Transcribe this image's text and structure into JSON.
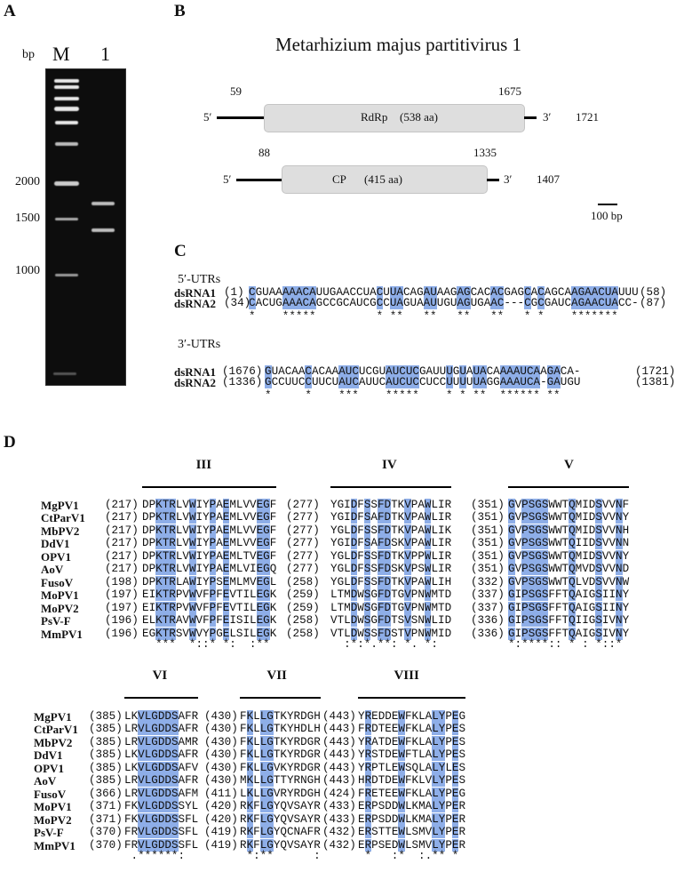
{
  "panels": {
    "a": "A",
    "b": "B",
    "c": "C",
    "d": "D"
  },
  "gel": {
    "unit_label": "bp",
    "lanes": [
      "M",
      "1"
    ],
    "markers": [
      "2000",
      "1500",
      "1000"
    ]
  },
  "genome": {
    "title": "Metarhizium majus partitivirus 1",
    "segments": [
      {
        "five": "5′",
        "three": "3′",
        "start": "59",
        "end": "1675",
        "length": "1721",
        "orf": "RdRp",
        "aa": "(538 aa)"
      },
      {
        "five": "5′",
        "three": "3′",
        "start": "88",
        "end": "1335",
        "length": "1407",
        "orf": "CP",
        "aa": "(415 aa)"
      }
    ],
    "scale_label": "100 bp"
  },
  "utr": {
    "five_title": "5′-UTRs",
    "three_title": "3′-UTRs",
    "five": {
      "rows": [
        {
          "name": "dsRNA1",
          "start": "(1)",
          "seq": "CGUAAAAACAUUGAACCUACUUACAGAUAAGAGCACACGAGCACAGCAAGAACUAUUU",
          "end": "(58)"
        },
        {
          "name": "dsRNA2",
          "start": "(34)",
          "seq": "CACUGAAACAGCCGCAUCGCCUAGUAAUUGUAGUGAAC---CGCGAUCAGAACUACC-",
          "end": "(87)"
        }
      ],
      "consensus": "*    *****         * **   **   **   **   * *    *******"
    },
    "three": {
      "rows": [
        {
          "name": "dsRNA1",
          "start": "(1676)",
          "seq": "GUACAACACAAAUCUCGUAUCUCGAUUUGUAUACAAAAUCAAGACA-",
          "end": "(1721)"
        },
        {
          "name": "dsRNA2",
          "start": "(1336)",
          "seq": "GCCUUCCUUCUAUCAUUCAUCUCCUCCUUUUUAGGAAAUCA-GAUGU",
          "end": "(1381)"
        }
      ],
      "consensus": "*     *    ***    *****    * * **  ****** **"
    }
  },
  "alignment": {
    "names": [
      "MgPV1",
      "CtParV1",
      "MbPV2",
      "DdV1",
      "OPV1",
      "AoV",
      "FusoV",
      "MoPV1",
      "MoPV2",
      "PsV-F",
      "MmPV1"
    ],
    "motifs": [
      {
        "label": "III",
        "highlight": [
          2,
          3,
          4,
          7,
          10,
          12,
          17,
          18
        ],
        "consensus": "  ***  *::* *:  :**",
        "starts": [
          "(217)",
          "(217)",
          "(217)",
          "(217)",
          "(217)",
          "(217)",
          "(198)",
          "(197)",
          "(197)",
          "(196)",
          "(196)"
        ],
        "seqs": [
          "DPKTRLVWIYPAEMLVVEGF",
          "DPKTRLVWIYPAEMLVVEGF",
          "DPKTRLVWIYPAEMLVVEGF",
          "DPKTRLVWIYPAEMLVVEGF",
          "DPKTRLVWIYPAEMLTVEGF",
          "DPKTRLVWIYPAEMLVIEGQ",
          "DPKTRLAWIYPSEMLMVEGL",
          "EIKTRPVWVFPFEVTILEGK",
          "EIKTRPVWVFPFEVTILEGK",
          "ELKTRAVWVFPFEISILEGK",
          "EGKTRSVWVYPGELSILEGK"
        ]
      },
      {
        "label": "IV",
        "highlight": [
          3,
          5,
          7,
          8,
          11,
          14
        ],
        "consensus": "  :*:*.**: *. *:",
        "starts": [
          "(277)",
          "(277)",
          "(277)",
          "(277)",
          "(277)",
          "(277)",
          "(258)",
          "(259)",
          "(259)",
          "(258)",
          "(258)"
        ],
        "seqs": [
          "YGIDFSSFDTKVPAWLIR",
          "YGIDFSAFDTKVPAWLIR",
          "YGLDFSSFDTKVPAWLIK",
          "YGIDFSAFDSKVPAWLIR",
          "YGLDFSSFDTKVPPWLIR",
          "YGLDFSSFDSKVPSWLIR",
          "YGLDFSSFDTKVPAWLIH",
          "LTMDWSGFDTGVPNWMTD",
          "LTMDWSGFDTGVPNWMTD",
          "VTLDWSGFDTSVSNWLID",
          "VTLDWSSFDSTVPNWMID"
        ]
      },
      {
        "label": "V",
        "highlight": [
          0,
          2,
          3,
          4,
          5,
          9,
          13,
          16
        ],
        "consensus": "*:****:: * : *::*",
        "starts": [
          "(351)",
          "(351)",
          "(351)",
          "(351)",
          "(351)",
          "(351)",
          "(332)",
          "(337)",
          "(337)",
          "(336)",
          "(336)"
        ],
        "seqs": [
          "GVPSGSWWTQMIDSVVNF",
          "GVPSGSWWTQMIDSVVNY",
          "GVPSGSWWTQMIDSVVNH",
          "GVPSGSWWTQIIDSVVNN",
          "GVPSGSWWTQMIDSVVNY",
          "GVPSGSWWTQMVDSVVND",
          "GVPSGSWWTQLVDSVVNW",
          "GIPSGSFFTQAIGSIINY",
          "GIPSGSFFTQAIGSIINY",
          "GIPSGSFFTQIIGSIVNY",
          "GIPSGSFFTQAIGSIVNY"
        ]
      },
      {
        "label": "VI",
        "highlight": [
          2,
          3,
          4,
          5,
          6,
          7
        ],
        "consensus": " .******:",
        "starts": [
          "(385)",
          "(385)",
          "(385)",
          "(385)",
          "(385)",
          "(385)",
          "(366)",
          "(371)",
          "(371)",
          "(370)",
          "(370)"
        ],
        "seqs": [
          "LKVLGDDSAFR",
          "LRVLGDDSAFR",
          "LRVLGDDSAMR",
          "LKVLGDDSAFR",
          "LKVLGDDSAFV",
          "LRVLGDDSAFR",
          "LRVLGDDSAFM",
          "FKVLGDDSSYL",
          "FKVLGDDSSFL",
          "FRVLGDDSSFL",
          "FRVLGDDSSFL"
        ]
      },
      {
        "label": "VII",
        "highlight": [
          1,
          3,
          4
        ],
        "consensus": " *:**      :",
        "starts": [
          "(430)",
          "(430)",
          "(430)",
          "(430)",
          "(430)",
          "(430)",
          "(411)",
          "(420)",
          "(420)",
          "(419)",
          "(419)"
        ],
        "seqs": [
          "FKLLGTKYRDGH",
          "FKLLGTKYHDLH",
          "FKLLGTKYRDGR",
          "FKLLGTKYRDGR",
          "FKLLGVKYRDGR",
          "MKLLGTTYRNGH",
          "LKLLGVRYRDGH",
          "RKFLGYQVSAYR",
          "RKFLGYQVSAYR",
          "RKFLGYQCNAFR",
          "RKFLGYQVSAYR"
        ]
      },
      {
        "label": "VIII",
        "highlight": [
          1,
          6,
          11,
          12,
          14
        ],
        "consensus": " *   :*  :.** *",
        "starts": [
          "(443)",
          "(443)",
          "(443)",
          "(443)",
          "(443)",
          "(443)",
          "(424)",
          "(433)",
          "(433)",
          "(432)",
          "(432)"
        ],
        "seqs": [
          "YREDDEWFKLALYPEG",
          "FRDTEEWFKLALYPES",
          "YRATDEWFKLALYPES",
          "YRSTDEWFTLALYPES",
          "YRPTLEWSQLALYLES",
          "HRDTDEWFKLVLYPES",
          "FRETEEWFKLALYPEG",
          "ERPSDDWLKMALYPER",
          "ERPSDDWLKMALYPER",
          "ERSTTEWLSMVLYPER",
          "ERPSEDWLSMVLYPER"
        ]
      }
    ]
  },
  "colors": {
    "highlight": "#8eaee8",
    "orf_box": "#dedede"
  }
}
